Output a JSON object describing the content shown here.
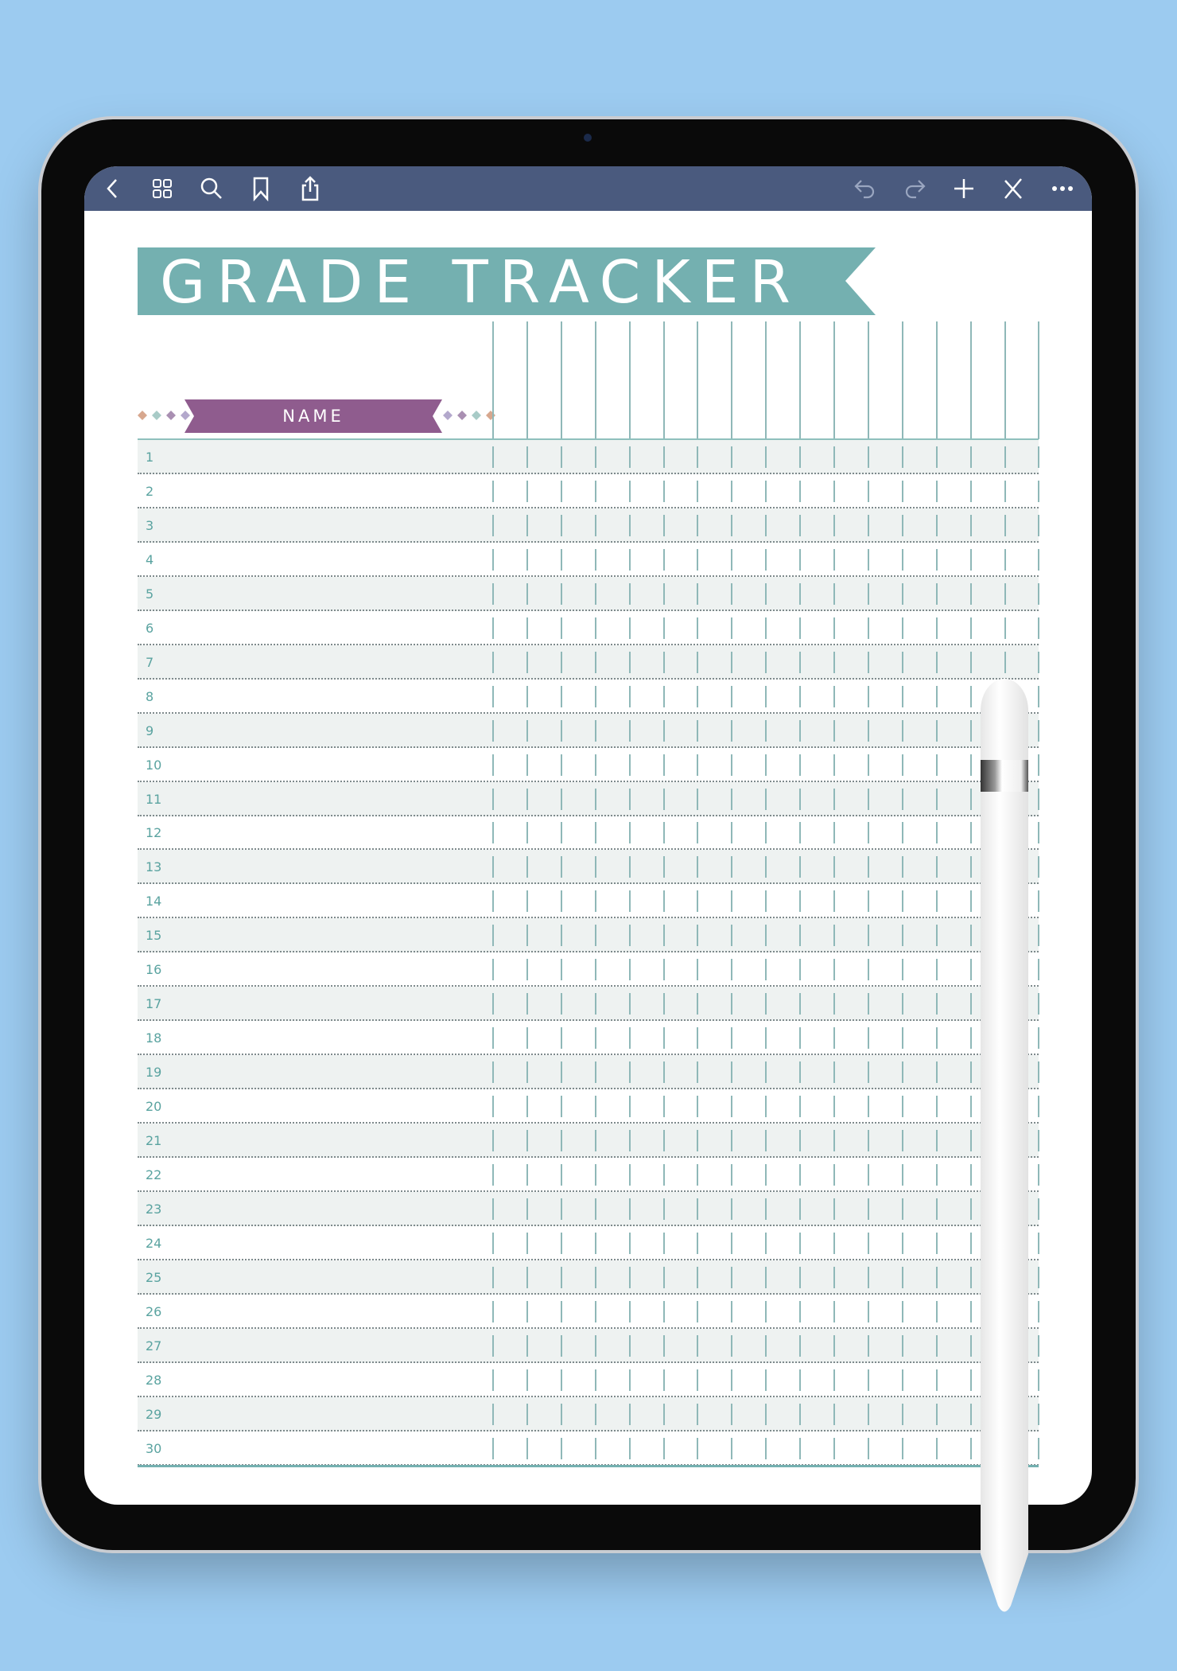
{
  "toolbar": {
    "left": [
      "back-icon",
      "grid-icon",
      "search-icon",
      "bookmark-icon",
      "share-icon"
    ],
    "right": [
      "undo-icon",
      "redo-icon",
      "plus-icon",
      "pen-close-icon",
      "more-icon"
    ],
    "color": "#4a5a7e"
  },
  "page": {
    "title": "GRADE TRACKER",
    "name_label": "NAME",
    "title_color": "#74b0b0",
    "name_color": "#8f5c8e",
    "rows": [
      "1",
      "2",
      "3",
      "4",
      "5",
      "6",
      "7",
      "8",
      "9",
      "10",
      "11",
      "12",
      "13",
      "14",
      "15",
      "16",
      "17",
      "18",
      "19",
      "20",
      "21",
      "22",
      "23",
      "24",
      "25",
      "26",
      "27",
      "28",
      "29",
      "30"
    ],
    "grade_columns": 16
  }
}
